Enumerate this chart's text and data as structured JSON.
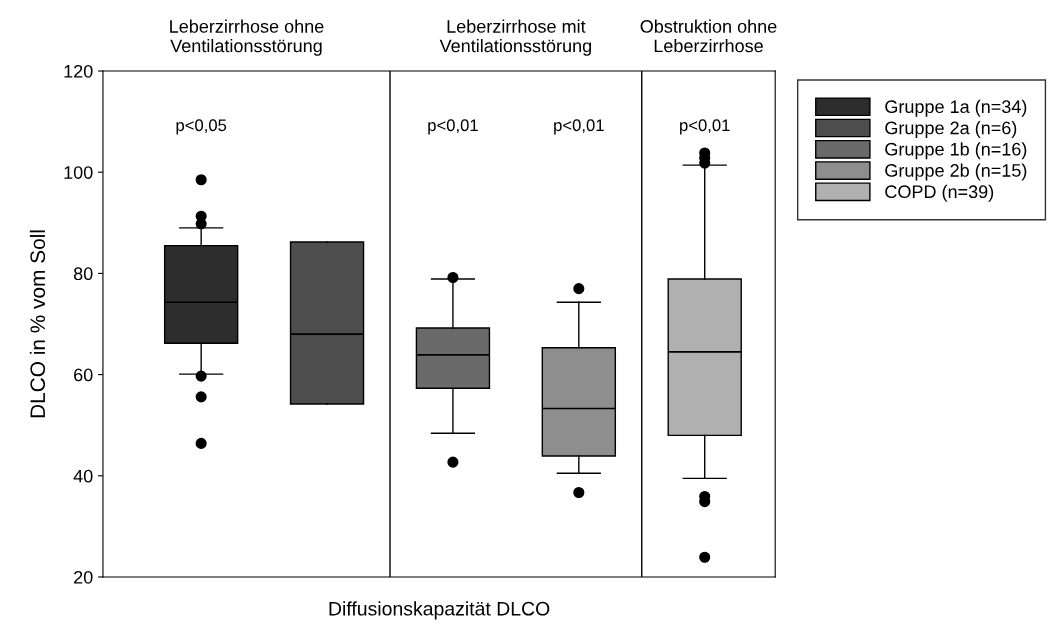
{
  "chart_data": {
    "type": "box",
    "xlabel": "Diffusionskapazität DLCO",
    "ylabel": "DLCO in % vom Soll",
    "categories": [
      null,
      null,
      null,
      null,
      null
    ],
    "series": [
      {
        "name": "Gruppe 1a (n=34)",
        "color": "#2d2d2d",
        "boxes": [
          {
            "low": 60.1,
            "q1": 66.2,
            "median": 74.3,
            "q3": 85.5,
            "high": 89.0,
            "outliers": [
              98.5,
              91.3,
              89.8,
              59.7,
              55.6,
              46.4
            ]
          },
          null,
          null,
          null,
          null
        ]
      },
      {
        "name": "Gruppe 2a (n=6)",
        "color": "#4d4d4d",
        "boxes": [
          null,
          {
            "low": 54.2,
            "q1": 54.2,
            "median": 68.0,
            "q3": 86.2,
            "high": 86.2
          },
          null,
          null,
          null
        ]
      },
      {
        "name": "Gruppe 1b (n=16)",
        "color": "#6a6a6a",
        "boxes": [
          null,
          null,
          {
            "low": 48.4,
            "q1": 57.3,
            "median": 63.9,
            "q3": 69.2,
            "high": 78.9,
            "outliers": [
              79.2,
              42.7
            ]
          },
          null,
          null
        ]
      },
      {
        "name": "Gruppe 2b (n=15)",
        "color": "#8e8e8e",
        "boxes": [
          null,
          null,
          null,
          {
            "low": 40.5,
            "q1": 43.9,
            "median": 53.3,
            "q3": 65.3,
            "high": 74.3,
            "outliers": [
              77.0,
              36.7
            ]
          },
          null
        ]
      },
      {
        "name": "COPD (n=39)",
        "color": "#b0b0b0",
        "boxes": [
          null,
          null,
          null,
          null,
          {
            "low": 39.5,
            "q1": 48.0,
            "median": 64.5,
            "q3": 78.9,
            "high": 101.4,
            "outliers": [
              103.8,
              102.8,
              101.8,
              35.9,
              34.9,
              23.9
            ]
          }
        ]
      }
    ],
    "ylim": [
      20,
      120
    ],
    "yticks": [
      20,
      40,
      60,
      80,
      100,
      120
    ],
    "annotations": [
      "Leberzirrhose ohne\nVentilationsstörung",
      "Leberzirrhose mit\nVentilationsstörung",
      "Obstruktion ohne\nLeberzirrhose",
      "p<0,05",
      "p<0,01",
      "p<0,01",
      "p<0,01"
    ],
    "grid": false,
    "legend": "right"
  }
}
